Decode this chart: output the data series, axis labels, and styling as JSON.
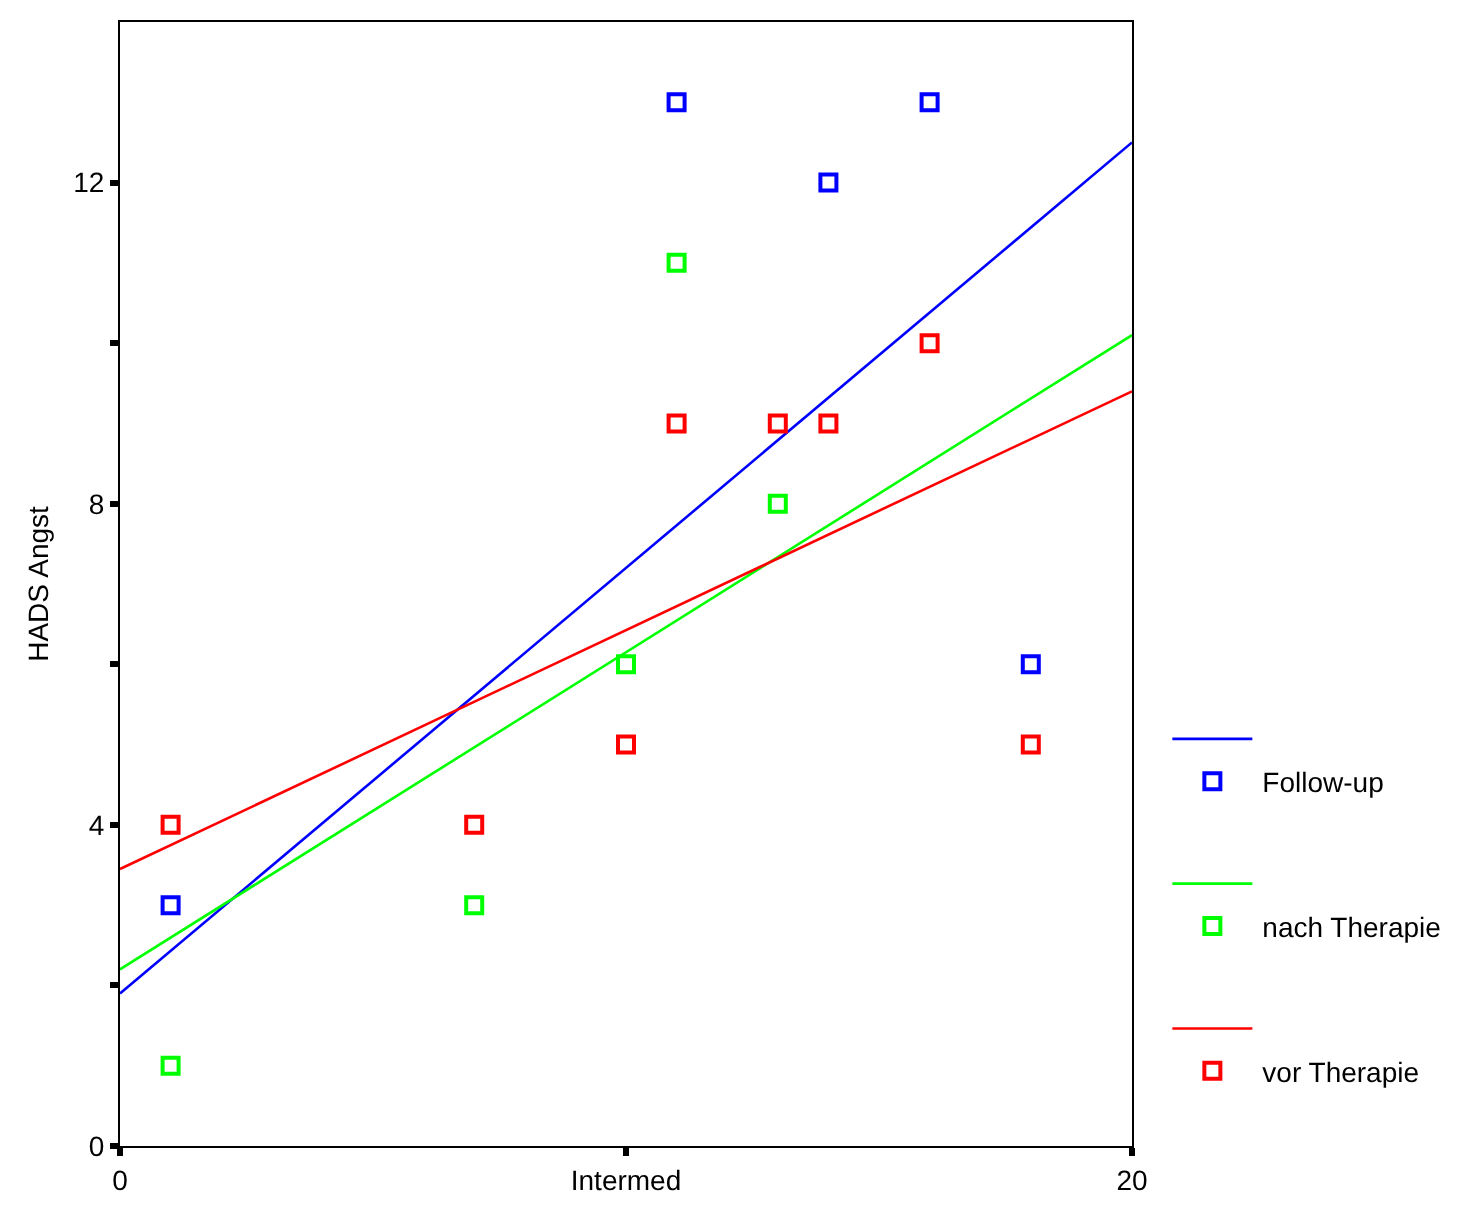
{
  "chart_data": {
    "type": "scatter",
    "ylabel": "HADS Angst",
    "xlim": [
      0,
      20
    ],
    "ylim": [
      0,
      14
    ],
    "xticks": [
      0,
      {
        "value": 10,
        "label": "Intermed"
      },
      20
    ],
    "yticks": [
      0,
      {
        "value": 2,
        "label": null
      },
      4,
      {
        "value": 6,
        "label": null
      },
      8,
      {
        "value": 10,
        "label": null
      },
      12
    ],
    "legend": "right",
    "marker": "square",
    "series": [
      {
        "type": "line",
        "marker": "none",
        "color": "#0000ff",
        "x": [
          0,
          20
        ],
        "values": [
          1.9,
          12.5
        ]
      },
      {
        "name": "Follow-up",
        "color": "#0000ff",
        "x": [
          1,
          7,
          10,
          11,
          13,
          14,
          16,
          18
        ],
        "values": [
          3,
          null,
          null,
          13,
          null,
          12,
          13,
          6
        ]
      },
      {
        "type": "line",
        "marker": "none",
        "color": "#00ff00",
        "x": [
          0,
          20
        ],
        "values": [
          2.2,
          10.1
        ]
      },
      {
        "name": "nach Therapie",
        "color": "#00ff00",
        "x": [
          1,
          7,
          10,
          11,
          13
        ],
        "values": [
          1,
          3,
          6,
          11,
          8
        ]
      },
      {
        "type": "line",
        "marker": "none",
        "color": "#ff0000",
        "x": [
          0,
          20
        ],
        "values": [
          3.45,
          9.4
        ]
      },
      {
        "name": "vor Therapie",
        "color": "#ff0000",
        "x": [
          1,
          7,
          10,
          11,
          13,
          14,
          16,
          18
        ],
        "values": [
          4,
          4,
          5,
          9,
          9,
          9,
          10,
          5
        ]
      }
    ]
  }
}
